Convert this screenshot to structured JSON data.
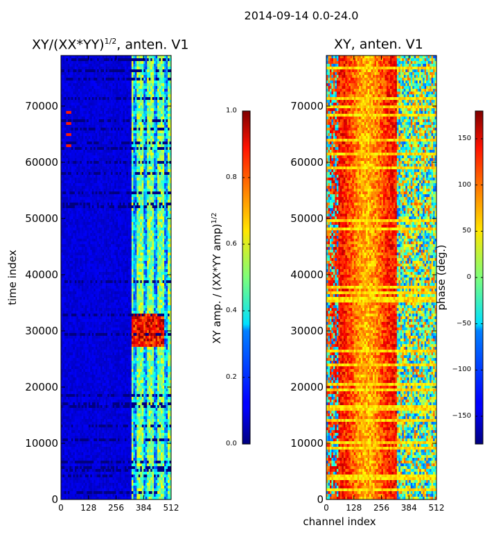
{
  "figure": {
    "suptitle": "2014-09-14 0.0-24.0"
  },
  "chart_data": [
    {
      "type": "heatmap",
      "title": "XY/(XX*YY)",
      "title_exponent": "1/2",
      "title_suffix": ", anten. V1",
      "xlabel": "",
      "ylabel": "time index",
      "x_ticks": [
        0,
        128,
        256,
        384,
        512
      ],
      "y_ticks": [
        0,
        10000,
        20000,
        30000,
        40000,
        50000,
        60000,
        70000
      ],
      "xlim": [
        0,
        512
      ],
      "ylim": [
        0,
        79000
      ],
      "colormap": "jet",
      "colorbar": {
        "label": "XY amp. / (XX*YY amp)",
        "label_exponent": "1/2",
        "range": [
          0.0,
          1.0
        ],
        "ticks": [
          0.0,
          0.2,
          0.4,
          0.6,
          0.8,
          1.0
        ],
        "tick_labels": [
          "0.0",
          "0.2",
          "0.4",
          "0.6",
          "0.8",
          "1.0"
        ]
      },
      "features": [
        {
          "description": "low background amplitude (dark blue) over most channels",
          "x_range": [
            0,
            330
          ],
          "value": 0.08
        },
        {
          "description": "bright striped band of high amplitude channels",
          "x_range": [
            330,
            512
          ],
          "value": 0.4
        },
        {
          "description": "strong red/yellow patches",
          "x_range": [
            340,
            480
          ],
          "y_range": [
            27000,
            33000
          ],
          "value": 0.9
        },
        {
          "description": "bright spots near low channels",
          "x_range": [
            25,
            45
          ],
          "y_range": [
            62000,
            69000
          ],
          "value": 0.8
        }
      ]
    },
    {
      "type": "heatmap",
      "title": "XY, anten. V1",
      "xlabel": "channel index",
      "ylabel": "",
      "x_ticks": [
        0,
        128,
        256,
        384,
        512
      ],
      "y_ticks": [
        0,
        10000,
        20000,
        30000,
        40000,
        50000,
        60000,
        70000
      ],
      "xlim": [
        0,
        512
      ],
      "ylim": [
        0,
        79000
      ],
      "colormap": "jet",
      "colorbar": {
        "label": "phase (deg.)",
        "range": [
          -180,
          180
        ],
        "ticks": [
          -150,
          -100,
          -50,
          0,
          50,
          100,
          150
        ],
        "tick_labels": [
          "−150",
          "−100",
          "−50",
          "0",
          "50",
          "100",
          "150"
        ]
      },
      "features": [
        {
          "description": "mostly red/orange phase with vertical structure",
          "x_range": [
            0,
            330
          ],
          "value": 120
        },
        {
          "description": "mixed yellow/green/blue region at high channels",
          "x_range": [
            330,
            512
          ],
          "value": 20
        },
        {
          "description": "many horizontal yellow/white stripes across all channels",
          "value": 60
        }
      ]
    }
  ]
}
